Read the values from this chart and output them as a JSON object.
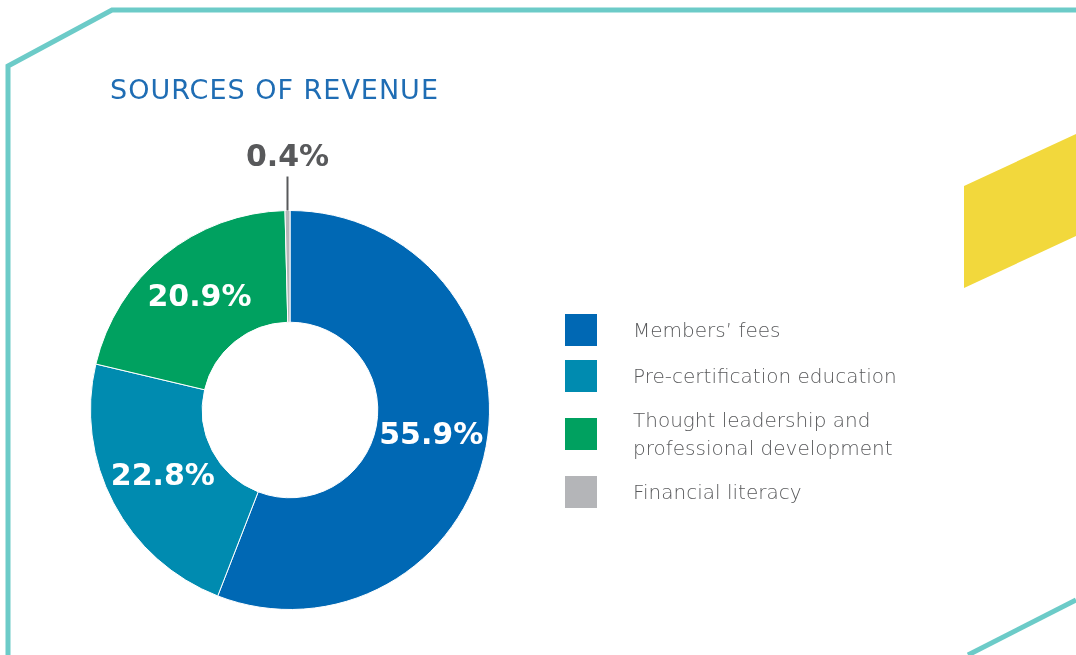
{
  "chart_data": {
    "type": "donut",
    "title": "SOURCES OF REVENUE",
    "categories": [
      "Members’ fees",
      "Pre-certification education",
      "Thought leadership and professional development",
      "Financial literacy"
    ],
    "values": [
      55.9,
      22.8,
      20.9,
      0.4
    ],
    "colors": [
      "#0068b4",
      "#008bb0",
      "#00a160",
      "#b4b5b8"
    ],
    "value_labels": [
      "55.9%",
      "22.8%",
      "20.9%",
      "0.4%"
    ],
    "legend": "right"
  }
}
